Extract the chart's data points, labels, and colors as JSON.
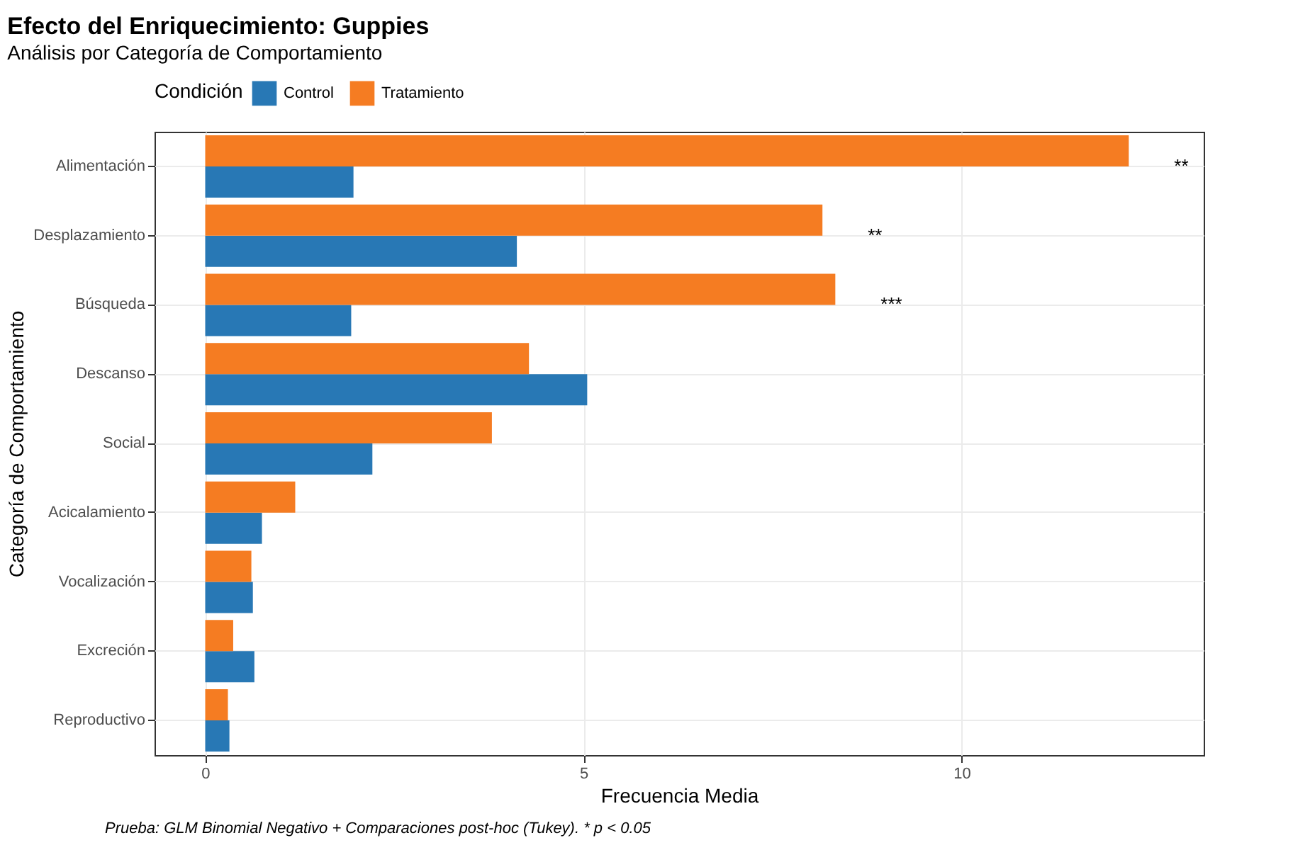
{
  "chart_data": {
    "type": "bar",
    "orientation": "horizontal",
    "title": "Efecto del Enriquecimiento: Guppies",
    "subtitle": "Análisis por Categoría de Comportamiento",
    "xlabel": "Frecuencia Media",
    "ylabel": "Categoría de Comportamiento",
    "legend_title": "Condición",
    "categories": [
      "Alimentación",
      "Desplazamiento",
      "Búsqueda",
      "Descanso",
      "Social",
      "Acicalamiento",
      "Vocalización",
      "Excreción",
      "Reproductivo"
    ],
    "series": [
      {
        "name": "Control",
        "color": "#2878b5",
        "values": [
          1.96,
          4.12,
          1.93,
          5.05,
          2.21,
          0.75,
          0.63,
          0.65,
          0.32
        ]
      },
      {
        "name": "Tratamiento",
        "color": "#f57c22",
        "values": [
          12.21,
          8.16,
          8.33,
          4.28,
          3.79,
          1.19,
          0.61,
          0.37,
          0.3
        ]
      }
    ],
    "xlim": [
      -0.67,
      13.2
    ],
    "xticks": [
      0,
      5,
      10
    ],
    "grid": true,
    "legend": "top",
    "annotations": [
      "**",
      "**",
      "***",
      "Prueba: GLM Binomial Negativo + Comparaciones post-hoc (Tukey). * p < 0.05"
    ]
  }
}
